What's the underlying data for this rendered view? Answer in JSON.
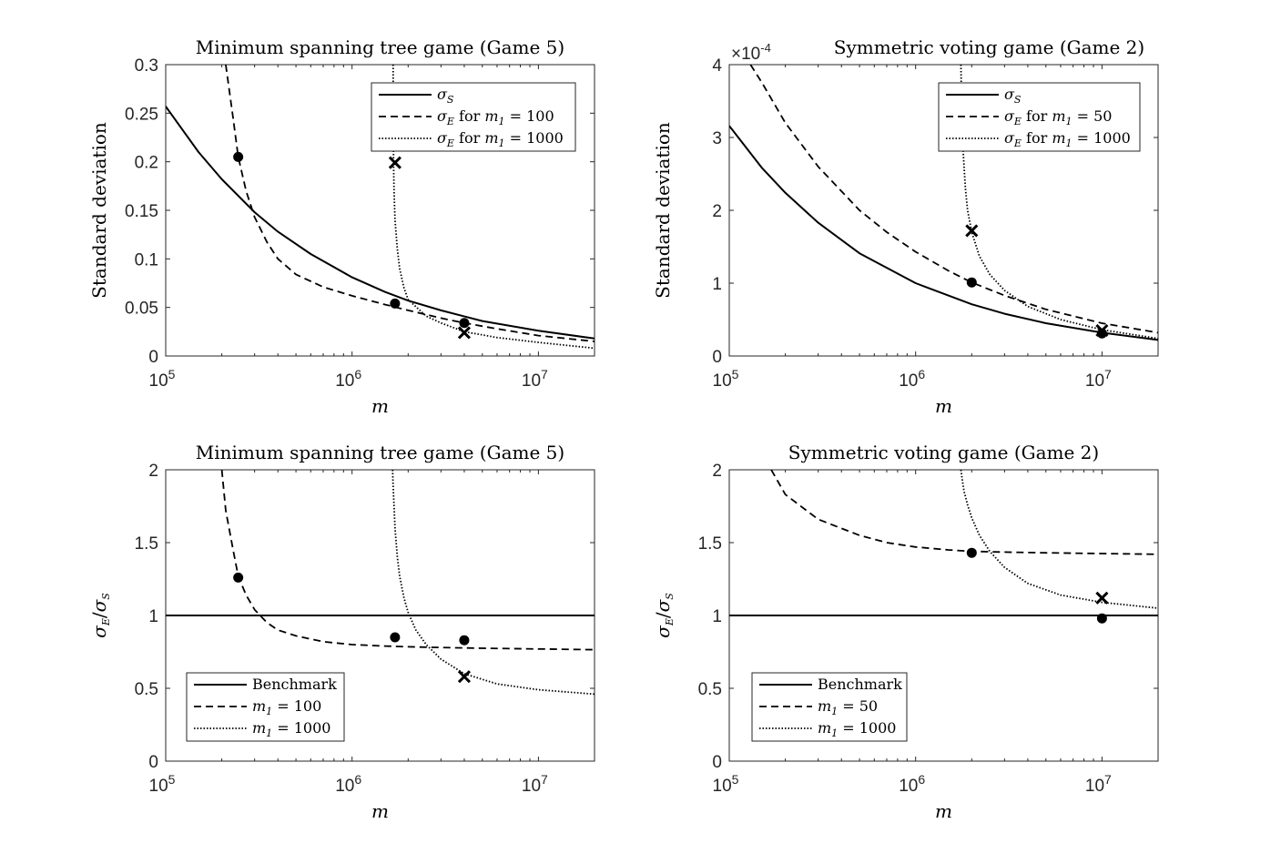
{
  "chart_data": [
    {
      "id": "p1",
      "type": "line",
      "title": "Minimum spanning tree game (Game 5)",
      "xlabel": "m",
      "ylabel": "Standard deviation",
      "xscale": "log",
      "xlim": [
        100000,
        20000000
      ],
      "ylim": [
        0,
        0.3
      ],
      "xticks": [
        100000,
        1000000,
        10000000
      ],
      "xtick_labels": [
        {
          "base": "10",
          "exp": "5"
        },
        {
          "base": "10",
          "exp": "6"
        },
        {
          "base": "10",
          "exp": "7"
        }
      ],
      "yticks": [
        0,
        0.05,
        0.1,
        0.15,
        0.2,
        0.25,
        0.3
      ],
      "ytick_labels": [
        "0",
        "0.05",
        "0.1",
        "0.15",
        "0.2",
        "0.25",
        "0.3"
      ],
      "legend": {
        "position": "top-right",
        "entries": [
          {
            "style": "solid",
            "label": "σ_S",
            "parts": [
              {
                "t": "σ",
                "i": true
              },
              {
                "sub": "S"
              }
            ]
          },
          {
            "style": "dashed",
            "label": "σ_E for m_1 = 100",
            "parts": [
              {
                "t": "σ",
                "i": true
              },
              {
                "sub": "E"
              },
              {
                "t": " for "
              },
              {
                "t": "m",
                "i": true
              },
              {
                "sub": "1"
              },
              {
                "t": " = 100"
              }
            ]
          },
          {
            "style": "dotted",
            "label": "σ_E for m_1 = 1000",
            "parts": [
              {
                "t": "σ",
                "i": true
              },
              {
                "sub": "E"
              },
              {
                "t": " for "
              },
              {
                "t": "m",
                "i": true
              },
              {
                "sub": "1"
              },
              {
                "t": " = 1000"
              }
            ]
          }
        ]
      },
      "series": [
        {
          "name": "σ_S",
          "style": "solid",
          "x": [
            100000,
            150000,
            200000,
            300000,
            400000,
            600000,
            1000000,
            1500000,
            2000000,
            3000000,
            5000000,
            10000000,
            20000000
          ],
          "y": [
            0.257,
            0.21,
            0.182,
            0.148,
            0.128,
            0.105,
            0.081,
            0.066,
            0.057,
            0.047,
            0.036,
            0.026,
            0.018
          ]
        },
        {
          "name": "σ_E for m1 = 100",
          "style": "dashed",
          "x": [
            210000,
            230000,
            245000,
            270000,
            300000,
            350000,
            400000,
            500000,
            700000,
            1000000,
            1500000,
            2000000,
            3000000,
            4000000,
            6000000,
            10000000,
            20000000
          ],
          "y": [
            0.3,
            0.245,
            0.205,
            0.17,
            0.143,
            0.117,
            0.1,
            0.084,
            0.071,
            0.062,
            0.053,
            0.047,
            0.039,
            0.034,
            0.028,
            0.021,
            0.015
          ]
        },
        {
          "name": "σ_E for m1 = 1000",
          "style": "dotted",
          "x": [
            1660000,
            1665000,
            1670000,
            1680000,
            1700000,
            1750000,
            1800000,
            1900000,
            2000000,
            2500000,
            3000000,
            4000000,
            6000000,
            10000000,
            20000000
          ],
          "y": [
            0.3,
            0.25,
            0.198,
            0.17,
            0.14,
            0.11,
            0.09,
            0.07,
            0.058,
            0.041,
            0.034,
            0.025,
            0.019,
            0.014,
            0.008
          ]
        }
      ],
      "markers": [
        {
          "type": "dot",
          "x": 245000,
          "y": 0.205
        },
        {
          "type": "dot",
          "x": 1700000,
          "y": 0.054
        },
        {
          "type": "dot",
          "x": 4000000,
          "y": 0.034
        },
        {
          "type": "cross",
          "x": 1700000,
          "y": 0.199
        },
        {
          "type": "cross",
          "x": 4000000,
          "y": 0.024
        }
      ]
    },
    {
      "id": "p2",
      "type": "line",
      "title": "Symmetric voting game (Game 2)",
      "xlabel": "m",
      "ylabel": "Standard deviation",
      "yexponent": "×10^-4",
      "yexponent_parts": [
        {
          "t": "×10"
        },
        {
          "sup": "-4"
        }
      ],
      "xscale": "log",
      "xlim": [
        100000,
        20000000
      ],
      "ylim": [
        0,
        4
      ],
      "xticks": [
        100000,
        1000000,
        10000000
      ],
      "xtick_labels": [
        {
          "base": "10",
          "exp": "5"
        },
        {
          "base": "10",
          "exp": "6"
        },
        {
          "base": "10",
          "exp": "7"
        }
      ],
      "yticks": [
        0,
        1,
        2,
        3,
        4
      ],
      "ytick_labels": [
        "0",
        "1",
        "2",
        "3",
        "4"
      ],
      "legend": {
        "position": "top-right",
        "entries": [
          {
            "style": "solid",
            "label": "σ_S",
            "parts": [
              {
                "t": "σ",
                "i": true
              },
              {
                "sub": "S"
              }
            ]
          },
          {
            "style": "dashed",
            "label": "σ_E for m_1 = 50",
            "parts": [
              {
                "t": "σ",
                "i": true
              },
              {
                "sub": "E"
              },
              {
                "t": " for "
              },
              {
                "t": "m",
                "i": true
              },
              {
                "sub": "1"
              },
              {
                "t": " = 50"
              }
            ]
          },
          {
            "style": "dotted",
            "label": "σ_E for m_1 = 1000",
            "parts": [
              {
                "t": "σ",
                "i": true
              },
              {
                "sub": "E"
              },
              {
                "t": " for "
              },
              {
                "t": "m",
                "i": true
              },
              {
                "sub": "1"
              },
              {
                "t": " = 1000"
              }
            ]
          }
        ]
      },
      "series": [
        {
          "name": "σ_S",
          "style": "solid",
          "x": [
            100000,
            150000,
            200000,
            300000,
            500000,
            1000000,
            2000000,
            3000000,
            5000000,
            10000000,
            20000000
          ],
          "y": [
            3.16,
            2.58,
            2.24,
            1.83,
            1.41,
            1.0,
            0.71,
            0.58,
            0.45,
            0.32,
            0.22
          ]
        },
        {
          "name": "σ_E for m1 = 50",
          "style": "dashed",
          "x": [
            130000,
            150000,
            200000,
            300000,
            500000,
            700000,
            1000000,
            1500000,
            2000000,
            3000000,
            5000000,
            10000000,
            20000000
          ],
          "y": [
            4.0,
            3.75,
            3.2,
            2.6,
            2.0,
            1.7,
            1.43,
            1.17,
            1.01,
            0.83,
            0.64,
            0.45,
            0.32
          ]
        },
        {
          "name": "σ_E for m1 = 1000",
          "style": "dotted",
          "x": [
            1750000,
            1760000,
            1780000,
            1800000,
            1850000,
            1900000,
            2000000,
            2200000,
            2500000,
            3000000,
            4000000,
            6000000,
            10000000,
            20000000
          ],
          "y": [
            4.0,
            3.6,
            3.1,
            2.8,
            2.3,
            2.0,
            1.7,
            1.37,
            1.12,
            0.9,
            0.68,
            0.5,
            0.36,
            0.24
          ]
        }
      ],
      "markers": [
        {
          "type": "dot",
          "x": 2000000,
          "y": 1.01
        },
        {
          "type": "dot",
          "x": 10000000,
          "y": 0.31
        },
        {
          "type": "cross",
          "x": 2000000,
          "y": 1.72
        },
        {
          "type": "cross",
          "x": 10000000,
          "y": 0.35
        }
      ]
    },
    {
      "id": "p3",
      "type": "line",
      "title": "Minimum spanning tree game (Game 5)",
      "xlabel": "m",
      "ylabel": "σ_E/σ_S",
      "xscale": "log",
      "xlim": [
        100000,
        20000000
      ],
      "ylim": [
        0,
        2
      ],
      "xticks": [
        100000,
        1000000,
        10000000
      ],
      "xtick_labels": [
        {
          "base": "10",
          "exp": "5"
        },
        {
          "base": "10",
          "exp": "6"
        },
        {
          "base": "10",
          "exp": "7"
        }
      ],
      "yticks": [
        0,
        0.5,
        1,
        1.5,
        2
      ],
      "ytick_labels": [
        "0",
        "0.5",
        "1",
        "1.5",
        "2"
      ],
      "legend": {
        "position": "bottom-left",
        "entries": [
          {
            "style": "solid",
            "label": "Benchmark",
            "parts": [
              {
                "t": "Benchmark"
              }
            ]
          },
          {
            "style": "dashed",
            "label": "m_1 = 100",
            "parts": [
              {
                "t": "m",
                "i": true
              },
              {
                "sub": "1"
              },
              {
                "t": " = 100"
              }
            ]
          },
          {
            "style": "dotted",
            "label": "m_1 = 1000",
            "parts": [
              {
                "t": "m",
                "i": true
              },
              {
                "sub": "1"
              },
              {
                "t": " = 1000"
              }
            ]
          }
        ]
      },
      "series": [
        {
          "name": "Benchmark",
          "style": "solid",
          "x": [
            100000,
            20000000
          ],
          "y": [
            1,
            1
          ]
        },
        {
          "name": "m1 = 100",
          "style": "dashed",
          "x": [
            200000,
            210000,
            230000,
            245000,
            270000,
            300000,
            350000,
            400000,
            500000,
            700000,
            1000000,
            1500000,
            2000000,
            3000000,
            5000000,
            10000000,
            20000000
          ],
          "y": [
            2.0,
            1.72,
            1.45,
            1.27,
            1.14,
            1.04,
            0.95,
            0.9,
            0.86,
            0.82,
            0.8,
            0.79,
            0.785,
            0.78,
            0.775,
            0.77,
            0.765
          ]
        },
        {
          "name": "m1 = 1000",
          "style": "dotted",
          "x": [
            1650000,
            1660000,
            1680000,
            1700000,
            1750000,
            1800000,
            1900000,
            2000000,
            2200000,
            2500000,
            3000000,
            4000000,
            6000000,
            10000000,
            20000000
          ],
          "y": [
            2.0,
            1.9,
            1.75,
            1.6,
            1.4,
            1.27,
            1.12,
            1.02,
            0.9,
            0.8,
            0.7,
            0.6,
            0.53,
            0.49,
            0.46
          ]
        }
      ],
      "markers": [
        {
          "type": "dot",
          "x": 245000,
          "y": 1.26
        },
        {
          "type": "dot",
          "x": 1700000,
          "y": 0.85
        },
        {
          "type": "dot",
          "x": 4000000,
          "y": 0.83
        },
        {
          "type": "cross",
          "x": 4000000,
          "y": 0.58
        }
      ]
    },
    {
      "id": "p4",
      "type": "line",
      "title": "Symmetric voting game (Game 2)",
      "xlabel": "m",
      "ylabel": "σ_E/σ_S",
      "xscale": "log",
      "xlim": [
        100000,
        20000000
      ],
      "ylim": [
        0,
        2
      ],
      "xticks": [
        100000,
        1000000,
        10000000
      ],
      "xtick_labels": [
        {
          "base": "10",
          "exp": "5"
        },
        {
          "base": "10",
          "exp": "6"
        },
        {
          "base": "10",
          "exp": "7"
        }
      ],
      "yticks": [
        0,
        0.5,
        1,
        1.5,
        2
      ],
      "ytick_labels": [
        "0",
        "0.5",
        "1",
        "1.5",
        "2"
      ],
      "legend": {
        "position": "bottom-left",
        "entries": [
          {
            "style": "solid",
            "label": "Benchmark",
            "parts": [
              {
                "t": "Benchmark"
              }
            ]
          },
          {
            "style": "dashed",
            "label": "m_1 = 50",
            "parts": [
              {
                "t": "m",
                "i": true
              },
              {
                "sub": "1"
              },
              {
                "t": " = 50"
              }
            ]
          },
          {
            "style": "dotted",
            "label": "m_1 = 1000",
            "parts": [
              {
                "t": "m",
                "i": true
              },
              {
                "sub": "1"
              },
              {
                "t": " = 1000"
              }
            ]
          }
        ]
      },
      "series": [
        {
          "name": "Benchmark",
          "style": "solid",
          "x": [
            100000,
            20000000
          ],
          "y": [
            1,
            1
          ]
        },
        {
          "name": "m1 = 50",
          "style": "dashed",
          "x": [
            168000,
            200000,
            300000,
            500000,
            700000,
            1000000,
            1500000,
            2000000,
            3000000,
            5000000,
            10000000,
            20000000
          ],
          "y": [
            2.0,
            1.83,
            1.66,
            1.55,
            1.5,
            1.47,
            1.45,
            1.44,
            1.435,
            1.43,
            1.425,
            1.42
          ]
        },
        {
          "name": "m1 = 1000",
          "style": "dotted",
          "x": [
            1750000,
            1780000,
            1820000,
            1900000,
            2000000,
            2200000,
            2500000,
            3000000,
            4000000,
            6000000,
            10000000,
            20000000
          ],
          "y": [
            2.0,
            1.93,
            1.85,
            1.76,
            1.67,
            1.55,
            1.44,
            1.33,
            1.22,
            1.14,
            1.09,
            1.05
          ]
        }
      ],
      "markers": [
        {
          "type": "dot",
          "x": 2000000,
          "y": 1.43
        },
        {
          "type": "dot",
          "x": 10000000,
          "y": 0.98
        },
        {
          "type": "cross",
          "x": 10000000,
          "y": 1.12
        }
      ]
    }
  ]
}
